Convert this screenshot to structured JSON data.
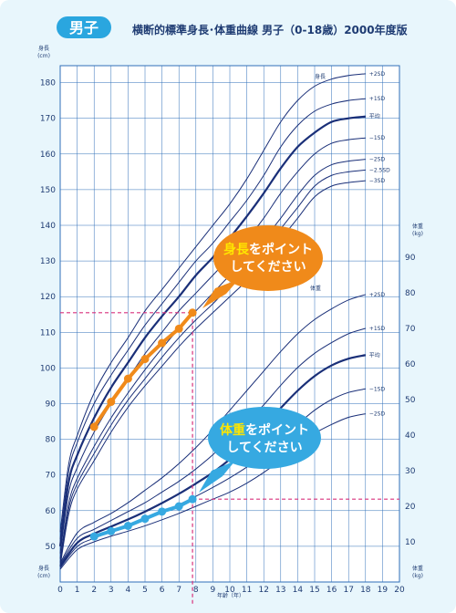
{
  "header": {
    "badge": "男子",
    "title": "横断的標準身長･体重曲線 男子（0-18歳）2000年度版"
  },
  "axes": {
    "height_unit": "身長",
    "height_unit_sub": "(cm)",
    "weight_unit": "体重",
    "weight_unit_sub": "(kg)",
    "age_label": "年齢（年）"
  },
  "annotations": {
    "height_curve_label": "身長",
    "weight_curve_label": "体重",
    "height_sd": [
      "+2SD",
      "+1SD",
      "平均",
      "−1SD",
      "−2SD",
      "−2.5SD",
      "−3SD"
    ],
    "weight_sd": [
      "+2SD",
      "+1SD",
      "平均",
      "−1SD",
      "−2SD"
    ]
  },
  "callouts": {
    "height": {
      "line1_keyword": "身長",
      "line1_rest": "をポイント",
      "line2": "してください"
    },
    "weight": {
      "line1_keyword": "体重",
      "line1_rest": "をポイント",
      "line2": "してください"
    }
  },
  "colors": {
    "background": "#e8f6fc",
    "grid": "#2f6fb8",
    "curve": "#1a2f78",
    "height_points": "#f08a1a",
    "weight_points": "#36a9e1",
    "guide": "#d8317c",
    "badge": "#2aa6df"
  },
  "chart_data": {
    "type": "line",
    "title": "横断的標準身長･体重曲線 男子（0-18歳）2000年度版",
    "xlabel": "年齢（年）",
    "ylabel": "身長(cm)",
    "y2label": "体重(kg)",
    "xlim": [
      0,
      20
    ],
    "ylim": [
      40,
      185
    ],
    "y2lim": [
      0,
      100
    ],
    "x_ticks": [
      0,
      1,
      2,
      3,
      4,
      5,
      6,
      7,
      8,
      9,
      10,
      11,
      12,
      13,
      14,
      15,
      16,
      17,
      18,
      19,
      20
    ],
    "y_ticks": [
      50,
      60,
      70,
      80,
      90,
      100,
      110,
      120,
      130,
      140,
      150,
      160,
      170,
      180
    ],
    "y2_ticks": [
      10,
      20,
      30,
      40,
      50,
      60,
      70,
      80,
      90
    ],
    "grid": true,
    "height_curves": [
      {
        "name": "+2SD",
        "x": [
          0,
          0.5,
          1,
          2,
          3,
          4,
          5,
          6,
          7,
          8,
          9,
          10,
          11,
          12,
          13,
          14,
          15,
          16,
          17,
          18
        ],
        "y": [
          54,
          73,
          81,
          93,
          101.5,
          108.5,
          116,
          122,
          128,
          134,
          140,
          146,
          153,
          161,
          169,
          175,
          179,
          181,
          182,
          182.5
        ]
      },
      {
        "name": "+1SD",
        "x": [
          0,
          0.5,
          1,
          2,
          3,
          4,
          5,
          6,
          7,
          8,
          9,
          10,
          11,
          12,
          13,
          14,
          15,
          16,
          17,
          18
        ],
        "y": [
          52,
          71,
          79,
          90,
          98,
          105,
          112,
          118,
          124,
          130,
          135,
          141,
          147,
          154,
          162,
          168,
          172,
          174,
          175,
          175.5
        ]
      },
      {
        "name": "平均",
        "x": [
          0,
          0.5,
          1,
          2,
          3,
          4,
          5,
          6,
          7,
          8,
          9,
          10,
          11,
          12,
          13,
          14,
          15,
          16,
          17,
          18
        ],
        "y": [
          50,
          68,
          75.5,
          86,
          94.5,
          101.5,
          108.5,
          114.5,
          120,
          126,
          131,
          136.5,
          142.5,
          149,
          156,
          162,
          166,
          169,
          170,
          170.5
        ]
      },
      {
        "name": "−1SD",
        "x": [
          0,
          0.5,
          1,
          2,
          3,
          4,
          5,
          6,
          7,
          8,
          9,
          10,
          11,
          12,
          13,
          14,
          15,
          16,
          17,
          18
        ],
        "y": [
          48,
          65,
          72,
          82,
          90,
          97,
          104,
          110,
          116,
          121,
          126,
          131,
          136,
          142,
          149,
          155,
          160,
          163,
          164,
          164.5
        ]
      },
      {
        "name": "−2SD",
        "x": [
          0,
          0.5,
          1,
          2,
          3,
          4,
          5,
          6,
          7,
          8,
          9,
          10,
          11,
          12,
          13,
          14,
          15,
          16,
          17,
          18
        ],
        "y": [
          46.5,
          62,
          69,
          78,
          86,
          93,
          99.5,
          105.5,
          111,
          116,
          121,
          126,
          130.5,
          136,
          142,
          148.5,
          154,
          157,
          158,
          158.5
        ]
      },
      {
        "name": "−2.5SD",
        "x": [
          0,
          0.5,
          1,
          2,
          3,
          4,
          5,
          6,
          7,
          8,
          9,
          10,
          11,
          12,
          13,
          14,
          15,
          16,
          17,
          18
        ],
        "y": [
          45.5,
          60.5,
          67.5,
          76,
          84,
          91,
          97,
          103,
          108.5,
          113.5,
          118,
          123,
          127.5,
          132.5,
          139,
          145,
          151,
          154,
          155,
          155.5
        ]
      },
      {
        "name": "−3SD",
        "x": [
          0,
          0.5,
          1,
          2,
          3,
          4,
          5,
          6,
          7,
          8,
          9,
          10,
          11,
          12,
          13,
          14,
          15,
          16,
          17,
          18
        ],
        "y": [
          44.5,
          59,
          66,
          74,
          82,
          89,
          95,
          100.5,
          106,
          111,
          115.5,
          120,
          124.5,
          129.5,
          136,
          142,
          148,
          151,
          152,
          152.5
        ]
      }
    ],
    "weight_curves": [
      {
        "name": "+2SD",
        "x": [
          0,
          1,
          2,
          3,
          4,
          5,
          6,
          7,
          8,
          9,
          10,
          11,
          12,
          13,
          14,
          15,
          16,
          17,
          18
        ],
        "y": [
          4,
          12.5,
          15.5,
          18,
          21,
          24.5,
          28,
          32,
          36.5,
          41.5,
          47,
          52.5,
          58,
          63.5,
          68.5,
          72.5,
          75.5,
          78,
          79.5
        ]
      },
      {
        "name": "+1SD",
        "x": [
          0,
          1,
          2,
          3,
          4,
          5,
          6,
          7,
          8,
          9,
          10,
          11,
          12,
          13,
          14,
          15,
          16,
          17,
          18
        ],
        "y": [
          3.6,
          11,
          13.5,
          16,
          18.5,
          21,
          24,
          27,
          30.5,
          34.5,
          39,
          43.5,
          48.5,
          54,
          59,
          63,
          66,
          68.5,
          70
        ]
      },
      {
        "name": "平均",
        "x": [
          0,
          1,
          2,
          3,
          4,
          5,
          6,
          7,
          8,
          9,
          10,
          11,
          12,
          13,
          14,
          15,
          16,
          17,
          18
        ],
        "y": [
          3.1,
          9.7,
          12.3,
          14.3,
          16.3,
          18.5,
          20.9,
          23.5,
          26.4,
          29.5,
          33.2,
          37.4,
          42.5,
          47.6,
          52.5,
          56.6,
          59.6,
          61.5,
          62.5
        ]
      },
      {
        "name": "−1SD",
        "x": [
          0,
          1,
          2,
          3,
          4,
          5,
          6,
          7,
          8,
          9,
          10,
          11,
          12,
          13,
          14,
          15,
          16,
          17,
          18
        ],
        "y": [
          2.7,
          8.7,
          11,
          12.8,
          14.5,
          16.3,
          18.3,
          20.5,
          22.8,
          25.3,
          28,
          31,
          34.5,
          38.5,
          43,
          47,
          50,
          52,
          53
        ]
      },
      {
        "name": "−2SD",
        "x": [
          0,
          1,
          2,
          3,
          4,
          5,
          6,
          7,
          8,
          9,
          10,
          11,
          12,
          13,
          14,
          15,
          16,
          17,
          18
        ],
        "y": [
          2.3,
          7.8,
          10,
          11.6,
          13,
          14.5,
          16.2,
          18,
          20,
          22,
          24,
          26.5,
          29.5,
          33,
          37,
          40.5,
          43,
          45,
          46
        ]
      }
    ],
    "height_points": {
      "x": [
        2,
        3,
        4,
        5,
        6,
        7,
        7.8
      ],
      "y": [
        83.5,
        90.5,
        97,
        102.5,
        107,
        111,
        115.5
      ]
    },
    "weight_points": {
      "x": [
        2,
        3,
        4,
        5,
        6,
        7,
        7.8
      ],
      "y": [
        11.5,
        13,
        14.5,
        16.5,
        18.5,
        20,
        22
      ]
    },
    "guides": {
      "age": 7.8,
      "height": 115.5,
      "weight": 22
    }
  }
}
